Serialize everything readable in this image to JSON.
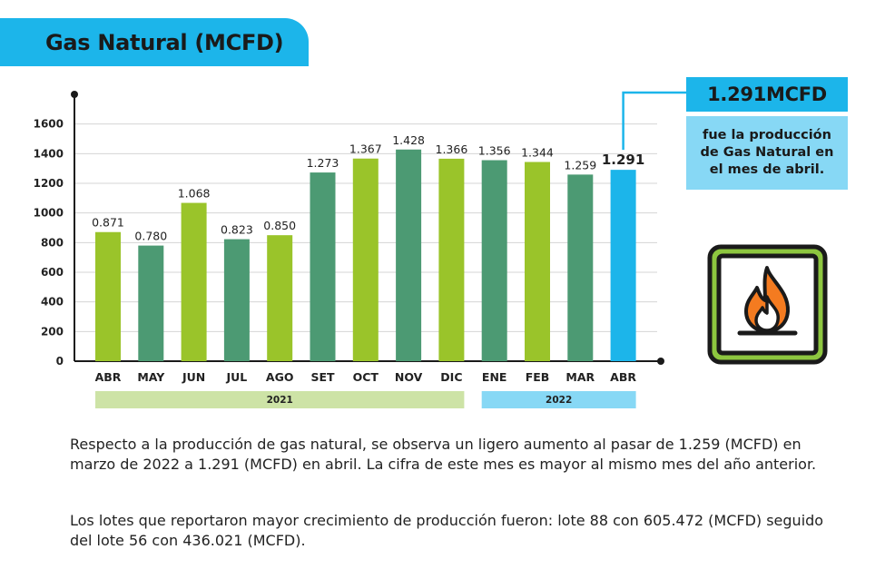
{
  "header": {
    "title": "Gas Natural (MCFD)"
  },
  "callout": {
    "value": "1.291MCFD",
    "description": "fue la producción de Gas Natural en el mes de abril."
  },
  "chart_data": {
    "type": "bar",
    "title": "Gas Natural (MCFD)",
    "categories": [
      "ABR",
      "MAY",
      "JUN",
      "JUL",
      "AGO",
      "SET",
      "OCT",
      "NOV",
      "DIC",
      "ENE",
      "FEB",
      "MAR",
      "ABR"
    ],
    "values": [
      871,
      780,
      1068,
      823,
      850,
      1273,
      1367,
      1428,
      1366,
      1356,
      1344,
      1259,
      1291
    ],
    "value_labels": [
      "0.871",
      "0.780",
      "1.068",
      "0.823",
      "0.850",
      "1.273",
      "1.367",
      "1.428",
      "1.366",
      "1.356",
      "1.344",
      "1.259",
      "1.291"
    ],
    "bar_colors": [
      "#9ac42a",
      "#4c9a73",
      "#9ac42a",
      "#4c9a73",
      "#9ac42a",
      "#4c9a73",
      "#9ac42a",
      "#4c9a73",
      "#9ac42a",
      "#4c9a73",
      "#9ac42a",
      "#4c9a73",
      "#1cb5ea"
    ],
    "highlight_index": 12,
    "y_ticks": [
      "0",
      "200",
      "400",
      "600",
      "800",
      "1000",
      "1200",
      "1400",
      "1600"
    ],
    "ylim": [
      0,
      1800
    ],
    "xlabel": "",
    "ylabel": "",
    "grid": true,
    "year_groups": [
      {
        "label": "2021",
        "start": 0,
        "end": 8,
        "color": "#cde3a6"
      },
      {
        "label": "2022",
        "start": 9,
        "end": 12,
        "color": "#87d8f5"
      }
    ]
  },
  "paragraphs": [
    "Respecto a la producción de gas natural, se observa un ligero aumento al pasar de 1.259 (MCFD) en marzo de 2022 a 1.291 (MCFD) en abril. La cifra de este mes es mayor al mismo mes del año anterior.",
    "Los lotes que reportaron mayor crecimiento de producción fueron: lote 88 con 605.472 (MCFD) seguido del lote 56 con 436.021 (MCFD)."
  ],
  "colors": {
    "accent_blue": "#1cb5ea",
    "light_blue": "#87d8f5",
    "green_light": "#9ac42a",
    "green_dark": "#4c9a73",
    "icon_green": "#8dc63f"
  },
  "icons": {
    "fire": "fire-icon"
  }
}
